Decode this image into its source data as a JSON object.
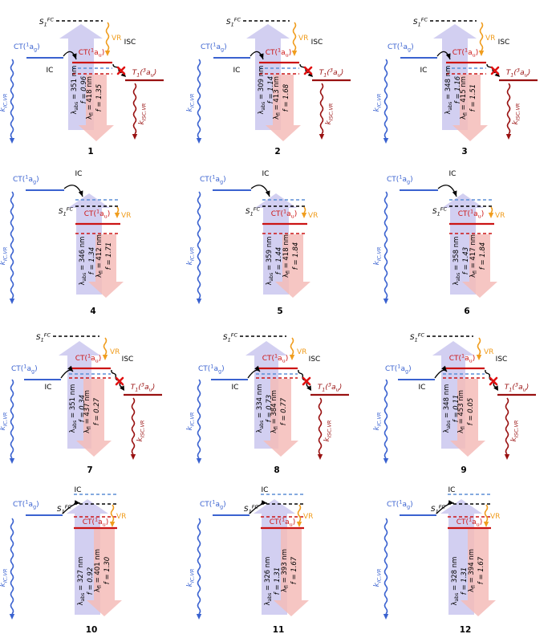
{
  "figure": {
    "shared": {
      "ct_g": "CT(^{1}a_{g})",
      "ct_u": "CT(^{1}a_{u})",
      "s1fc": "S_{1}^{FC}",
      "t1": "T_{1}(^{3}a_{u})",
      "vr": "VR",
      "ic": "IC",
      "isc": "ISC",
      "k_ic_vr": "k_{IC,VR}",
      "k_isc_vr": "k_{ISC,VR}"
    },
    "colors": {
      "blue": "#3a62d0",
      "light_blue_dash": "#5b8dd6",
      "red": "#cc1414",
      "dark_red": "#991111",
      "orange": "#f09d1e",
      "abs_arrow_fill": "#c7c3ed",
      "fl_arrow_fill": "#f5bcb8",
      "isc_x": "#e01010"
    },
    "panels": [
      {
        "number": "1",
        "isc": true,
        "isc_blocked": true,
        "abs": "λ_{abs} = 351 nm",
        "abs_f": "f = 0.96",
        "fl": "λ_{fl} = 418 nm",
        "fl_f": "f = 1.35"
      },
      {
        "number": "2",
        "isc": true,
        "isc_blocked": true,
        "abs": "λ_{abs} = 309 nm",
        "abs_f": "f = 1.14",
        "fl": "λ_{fl} = 413 nm",
        "fl_f": "f = 1.68"
      },
      {
        "number": "3",
        "isc": true,
        "isc_blocked": true,
        "abs": "λ_{abs} = 348 nm",
        "abs_f": "f = 1.16",
        "fl": "λ_{fl} = 415 nm",
        "fl_f": "f = 1.51"
      },
      {
        "number": "4",
        "isc": false,
        "abs": "λ_{abs} = 346 nm",
        "abs_f": "f = 1.34",
        "fl": "λ_{fl} = 412 nm",
        "fl_f": "f = 1.71"
      },
      {
        "number": "5",
        "isc": false,
        "abs": "λ_{abs} = 359 nm",
        "abs_f": "f = 1.44",
        "fl": "λ_{fl} = 418 nm",
        "fl_f": "f = 1.84"
      },
      {
        "number": "6",
        "isc": false,
        "abs": "λ_{abs} = 358 nm",
        "abs_f": "f = 1.43",
        "fl": "λ_{fl} = 417 nm",
        "fl_f": "f = 1.84"
      },
      {
        "number": "7",
        "isc": true,
        "isc_blocked": true,
        "abs": "λ_{abs} = 351 nm",
        "abs_f": "f = 0.34",
        "fl": "λ_{fl} = 437 nm",
        "fl_f": "f = 0.27"
      },
      {
        "number": "8",
        "isc": true,
        "isc_blocked": true,
        "abs": "λ_{abs} = 334 nm",
        "abs_f": "f = 0.73",
        "fl": "λ_{fl} = 384 nm",
        "fl_f": "f = 0.77"
      },
      {
        "number": "9",
        "isc": true,
        "isc_blocked": true,
        "abs": "λ_{abs} = 348 nm",
        "abs_f": "f = 0.11",
        "fl": "λ_{fl} = 453 nm",
        "fl_f": "f = 0.05"
      },
      {
        "number": "10",
        "isc": false,
        "abs": "λ_{abs} = 327 nm",
        "abs_f": "f = 0.92",
        "fl": "λ_{fl} = 401 nm",
        "fl_f": "f = 1.30"
      },
      {
        "number": "11",
        "isc": false,
        "abs": "λ_{abs} = 326 nm",
        "abs_f": "f = 1.31",
        "fl": "λ_{fl} = 393 nm",
        "fl_f": "f = 1.67"
      },
      {
        "number": "12",
        "isc": false,
        "abs": "λ_{abs} = 328 nm",
        "abs_f": "f = 1.31",
        "fl": "λ_{fl} = 394 nm",
        "fl_f": "f = 1.67"
      }
    ]
  }
}
